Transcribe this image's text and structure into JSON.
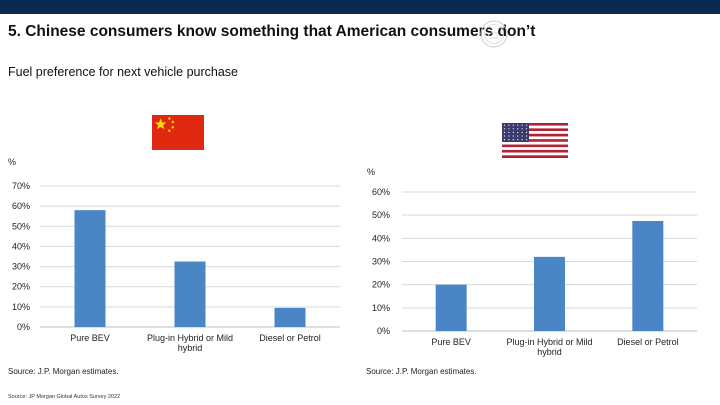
{
  "slide": {
    "title": "5. Chinese consumers know something that American consumers don’t",
    "subtitle": "Fuel preference for next vehicle purchase",
    "footnote": "Source: JP Morgan Global Autos Survey 2022"
  },
  "colors": {
    "top_bar": "#0b2a52",
    "bar": "#4a86c5",
    "grid": "#d9d9d9",
    "cn_flag_red": "#de2910",
    "cn_flag_star": "#ffde00",
    "us_flag_red": "#b22234",
    "us_flag_blue": "#3c3b6e"
  },
  "icons": {
    "logo": "circular-seal-logo-icon",
    "china_flag": "china-flag-icon",
    "usa_flag": "usa-flag-icon"
  },
  "chart_data": [
    {
      "type": "bar",
      "panel": "china",
      "categories": [
        "Pure BEV",
        "Plug-in Hybrid or Mild hybrid",
        "Diesel or Petrol"
      ],
      "category_lines": [
        [
          "Pure BEV"
        ],
        [
          "Plug-in Hybrid or Mild",
          "hybrid"
        ],
        [
          "Diesel or Petrol"
        ]
      ],
      "values": [
        58,
        32.5,
        9.5
      ],
      "ylabel": "%",
      "ylim": [
        0,
        70
      ],
      "yticks": [
        0,
        10,
        20,
        30,
        40,
        50,
        60,
        70
      ],
      "ytick_labels": [
        "0%",
        "10%",
        "20%",
        "30%",
        "40%",
        "50%",
        "60%",
        "70%"
      ],
      "grid": true,
      "legend": "none",
      "source": "Source: J.P. Morgan estimates."
    },
    {
      "type": "bar",
      "panel": "usa",
      "categories": [
        "Pure BEV",
        "Plug-in Hybrid or Mild hybrid",
        "Diesel or Petrol"
      ],
      "category_lines": [
        [
          "Pure BEV"
        ],
        [
          "Plug-in Hybrid or Mild",
          "hybrid"
        ],
        [
          "Diesel or Petrol"
        ]
      ],
      "values": [
        20,
        32,
        47.5
      ],
      "ylabel": "%",
      "ylim": [
        0,
        60
      ],
      "yticks": [
        0,
        10,
        20,
        30,
        40,
        50,
        60
      ],
      "ytick_labels": [
        "0%",
        "10%",
        "20%",
        "30%",
        "40%",
        "50%",
        "60%"
      ],
      "grid": true,
      "legend": "none",
      "source": "Source: J.P. Morgan estimates."
    }
  ]
}
